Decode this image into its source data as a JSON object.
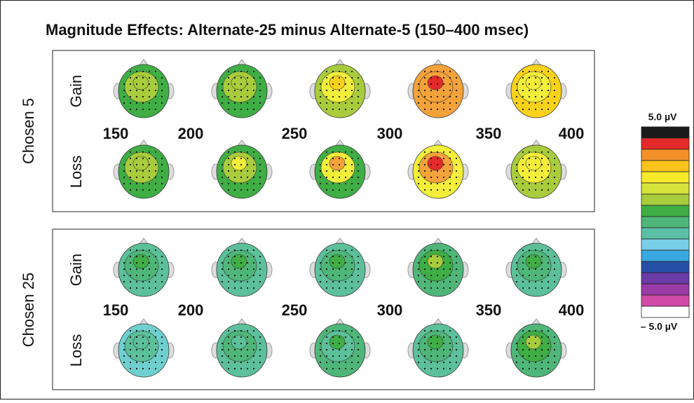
{
  "title": "Magnitude Effects: Alternate-25 minus Alternate-5 (150–400 msec)",
  "panels": [
    {
      "label": "Chosen 5",
      "rows": [
        "Gain",
        "Loss"
      ],
      "times": [
        "150",
        "200",
        "250",
        "300",
        "350",
        "400"
      ]
    },
    {
      "label": "Chosen 25",
      "rows": [
        "Gain",
        "Loss"
      ],
      "times": [
        "150",
        "200",
        "250",
        "300",
        "350",
        "400"
      ]
    }
  ],
  "colorbar": {
    "max_label": "5.0 µV",
    "min_label": "– 5.0 µV"
  }
}
